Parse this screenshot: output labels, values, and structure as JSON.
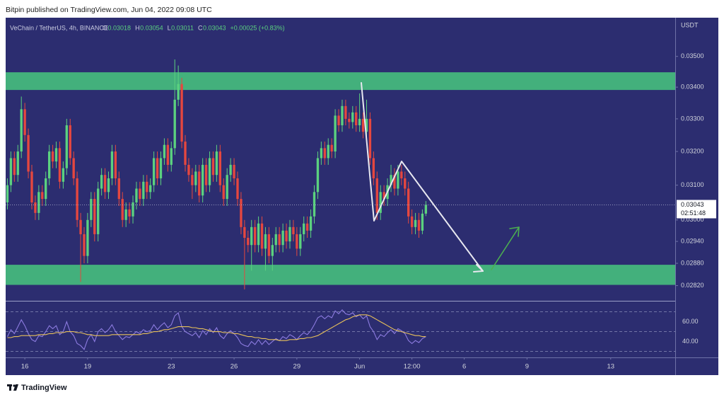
{
  "published": "Bitpin published on TradingView.com, Jun 04, 2022 09:08 UTC",
  "brand": "TradingView",
  "chart_data": [
    {
      "type": "candlestick",
      "symbol": "VeChain / TetherUS, 4h, BINANCE",
      "ohlc_labels": [
        "O",
        "H",
        "L",
        "C"
      ],
      "change": "+0.00025 (+0.83%)",
      "axis_unit": "USDT",
      "countdown": "02:51:48",
      "background": "#2c2d70",
      "up_color": "#5bd17f",
      "down_color": "#e5473f",
      "zone_color": "#43b07c",
      "zones": [
        {
          "from": 0.03391,
          "to": 0.03448
        },
        {
          "from": 0.02822,
          "to": 0.02876
        }
      ],
      "log": true,
      "ylim": [
        0.0278,
        0.0363
      ],
      "yticks": [
        {
          "value": 0.035,
          "label": "0.03500"
        },
        {
          "value": 0.034,
          "label": "0.03400"
        },
        {
          "value": 0.033,
          "label": "0.03300"
        },
        {
          "value": 0.032,
          "label": "0.03200"
        },
        {
          "value": 0.031,
          "label": "0.03100"
        },
        {
          "value": 0.03,
          "label": "0.03000"
        },
        {
          "value": 0.0294,
          "label": "0.02940"
        },
        {
          "value": 0.0288,
          "label": "0.02880"
        },
        {
          "value": 0.0282,
          "label": "0.02820"
        }
      ],
      "xlim": [
        -0.5,
        191.5
      ],
      "xticks": [
        {
          "value": 5,
          "label": "16"
        },
        {
          "value": 23,
          "label": "19"
        },
        {
          "value": 47,
          "label": "23"
        },
        {
          "value": 65,
          "label": "26"
        },
        {
          "value": 83,
          "label": "29"
        },
        {
          "value": 101,
          "label": "Jun"
        },
        {
          "value": 116,
          "label": "12:00"
        },
        {
          "value": 131,
          "label": "6"
        },
        {
          "value": 149,
          "label": "9"
        },
        {
          "value": 173,
          "label": "13"
        }
      ],
      "open": [
        0.0305,
        0.031,
        0.0318,
        0.0313,
        0.032,
        0.0333,
        0.0325,
        0.0314,
        0.0305,
        0.0302,
        0.0308,
        0.0306,
        0.0312,
        0.032,
        0.0317,
        0.0321,
        0.0311,
        0.0315,
        0.0328,
        0.0318,
        0.0312,
        0.03,
        0.0296,
        0.029,
        0.03,
        0.0306,
        0.0296,
        0.0309,
        0.0313,
        0.0308,
        0.0312,
        0.032,
        0.0312,
        0.0306,
        0.03,
        0.0303,
        0.0301,
        0.0305,
        0.0309,
        0.0306,
        0.0311,
        0.0308,
        0.031,
        0.0318,
        0.0312,
        0.0318,
        0.0322,
        0.0316,
        0.0321,
        0.0336,
        0.0341,
        0.0323,
        0.0316,
        0.0313,
        0.031,
        0.0314,
        0.0307,
        0.0316,
        0.031,
        0.0318,
        0.0313,
        0.032,
        0.031,
        0.0306,
        0.0313,
        0.0316,
        0.0312,
        0.0306,
        0.0298,
        0.0295,
        0.0293,
        0.0298,
        0.0293,
        0.0299,
        0.0292,
        0.0296,
        0.029,
        0.0293,
        0.0296,
        0.0293,
        0.0297,
        0.0294,
        0.0298,
        0.0296,
        0.0292,
        0.0296,
        0.0299,
        0.0297,
        0.0301,
        0.0308,
        0.0318,
        0.0321,
        0.0318,
        0.0322,
        0.032,
        0.0331,
        0.0328,
        0.0334,
        0.033,
        0.0329,
        0.0332,
        0.0328,
        0.033,
        0.0326,
        0.033,
        0.0318,
        0.0312,
        0.0302,
        0.0308,
        0.0306,
        0.031,
        0.0313,
        0.0309,
        0.0314,
        0.0312,
        0.0309,
        0.0301,
        0.0298,
        0.03,
        0.0297,
        0.03018
      ],
      "high": [
        0.0312,
        0.032,
        0.032,
        0.0322,
        0.0337,
        0.0335,
        0.0327,
        0.0316,
        0.0307,
        0.031,
        0.031,
        0.0314,
        0.0322,
        0.0322,
        0.0323,
        0.0323,
        0.0317,
        0.033,
        0.033,
        0.032,
        0.0314,
        0.0302,
        0.0298,
        0.0302,
        0.0308,
        0.0308,
        0.0311,
        0.0315,
        0.0315,
        0.0314,
        0.0322,
        0.0322,
        0.0314,
        0.0308,
        0.0305,
        0.0305,
        0.0307,
        0.0311,
        0.0311,
        0.0313,
        0.0313,
        0.0312,
        0.032,
        0.032,
        0.032,
        0.0324,
        0.0324,
        0.0323,
        0.0349,
        0.0347,
        0.0343,
        0.0325,
        0.0318,
        0.0315,
        0.0316,
        0.0316,
        0.0318,
        0.0318,
        0.032,
        0.032,
        0.0322,
        0.0322,
        0.0312,
        0.0315,
        0.0318,
        0.0318,
        0.0314,
        0.0308,
        0.03,
        0.0297,
        0.03,
        0.03,
        0.0301,
        0.0301,
        0.0298,
        0.0298,
        0.0295,
        0.0298,
        0.0298,
        0.0299,
        0.0299,
        0.03,
        0.03,
        0.0298,
        0.0298,
        0.0301,
        0.0301,
        0.0303,
        0.031,
        0.032,
        0.0323,
        0.0323,
        0.0324,
        0.0324,
        0.0333,
        0.0333,
        0.0336,
        0.0336,
        0.0332,
        0.0334,
        0.0334,
        0.0338,
        0.0332,
        0.0336,
        0.0332,
        0.032,
        0.0314,
        0.031,
        0.031,
        0.0312,
        0.0316,
        0.0315,
        0.0316,
        0.0316,
        0.0314,
        0.0311,
        0.0303,
        0.0302,
        0.0302,
        0.0303,
        0.03054
      ],
      "low": [
        0.0303,
        0.0308,
        0.0311,
        0.0311,
        0.0318,
        0.0323,
        0.0312,
        0.0303,
        0.03,
        0.03,
        0.0304,
        0.0304,
        0.031,
        0.0315,
        0.0315,
        0.0309,
        0.0309,
        0.0313,
        0.0316,
        0.031,
        0.0298,
        0.0283,
        0.0288,
        0.0288,
        0.0298,
        0.0294,
        0.0294,
        0.0307,
        0.0306,
        0.0306,
        0.031,
        0.031,
        0.0304,
        0.0298,
        0.0298,
        0.0299,
        0.0299,
        0.0303,
        0.0304,
        0.0304,
        0.0306,
        0.0306,
        0.0308,
        0.031,
        0.031,
        0.0316,
        0.0314,
        0.0314,
        0.0319,
        0.0334,
        0.0321,
        0.0314,
        0.0311,
        0.0306,
        0.0308,
        0.0305,
        0.0305,
        0.0308,
        0.0308,
        0.0311,
        0.0311,
        0.0308,
        0.0304,
        0.0304,
        0.0311,
        0.031,
        0.0304,
        0.0296,
        0.0281,
        0.0291,
        0.0286,
        0.0291,
        0.0291,
        0.029,
        0.0286,
        0.0288,
        0.0286,
        0.0291,
        0.0291,
        0.0291,
        0.0292,
        0.0292,
        0.0294,
        0.029,
        0.029,
        0.0294,
        0.0295,
        0.0295,
        0.0299,
        0.0306,
        0.0316,
        0.0316,
        0.0316,
        0.0318,
        0.0318,
        0.0326,
        0.0326,
        0.0328,
        0.0327,
        0.0327,
        0.0326,
        0.0326,
        0.0324,
        0.0324,
        0.0316,
        0.031,
        0.03,
        0.03,
        0.0304,
        0.0304,
        0.0308,
        0.0307,
        0.0307,
        0.031,
        0.0307,
        0.0299,
        0.0296,
        0.0296,
        0.0295,
        0.0296,
        0.03011
      ],
      "close": [
        0.031,
        0.0318,
        0.0313,
        0.032,
        0.0333,
        0.0325,
        0.0314,
        0.0305,
        0.0302,
        0.0308,
        0.0306,
        0.0312,
        0.032,
        0.0317,
        0.0321,
        0.0311,
        0.0315,
        0.0328,
        0.0318,
        0.0312,
        0.03,
        0.0296,
        0.029,
        0.03,
        0.0306,
        0.0296,
        0.0309,
        0.0313,
        0.0308,
        0.0312,
        0.032,
        0.0312,
        0.0306,
        0.03,
        0.0303,
        0.0301,
        0.0305,
        0.0309,
        0.0306,
        0.0311,
        0.0308,
        0.031,
        0.0318,
        0.0312,
        0.0318,
        0.0322,
        0.0316,
        0.0321,
        0.0336,
        0.0341,
        0.0323,
        0.0316,
        0.0313,
        0.031,
        0.0314,
        0.0307,
        0.0316,
        0.031,
        0.0318,
        0.0313,
        0.032,
        0.031,
        0.0306,
        0.0313,
        0.0316,
        0.0312,
        0.0306,
        0.0298,
        0.0295,
        0.0293,
        0.0298,
        0.0293,
        0.0299,
        0.0292,
        0.0296,
        0.029,
        0.0293,
        0.0296,
        0.0293,
        0.0297,
        0.0294,
        0.0298,
        0.0296,
        0.0292,
        0.0296,
        0.0299,
        0.0297,
        0.0301,
        0.0308,
        0.0318,
        0.0321,
        0.0318,
        0.0322,
        0.032,
        0.0331,
        0.0328,
        0.0334,
        0.033,
        0.0329,
        0.0332,
        0.0328,
        0.033,
        0.0326,
        0.033,
        0.0318,
        0.0312,
        0.0302,
        0.0308,
        0.0306,
        0.031,
        0.0313,
        0.0309,
        0.0314,
        0.0312,
        0.0309,
        0.0301,
        0.0298,
        0.03,
        0.0297,
        0.03018,
        0.03043
      ]
    },
    {
      "type": "line",
      "ylim": [
        24,
        79
      ],
      "yticks": [
        {
          "value": 60,
          "label": "60.00"
        },
        {
          "value": 40,
          "label": "40.00"
        }
      ],
      "levels": [
        30,
        50,
        70
      ],
      "series": [
        {
          "color": "#8c7be0",
          "values": [
            45,
            52,
            48,
            55,
            62,
            56,
            48,
            42,
            40,
            46,
            45,
            50,
            56,
            53,
            56,
            47,
            50,
            60,
            50,
            46,
            38,
            36,
            32,
            42,
            47,
            40,
            50,
            53,
            49,
            52,
            57,
            50,
            46,
            42,
            45,
            44,
            47,
            50,
            48,
            52,
            50,
            51,
            57,
            52,
            56,
            59,
            54,
            57,
            66,
            69,
            55,
            50,
            48,
            46,
            49,
            44,
            51,
            47,
            53,
            49,
            54,
            46,
            43,
            48,
            51,
            48,
            44,
            38,
            36,
            35,
            40,
            37,
            42,
            37,
            41,
            37,
            40,
            43,
            41,
            45,
            43,
            47,
            45,
            42,
            46,
            49,
            47,
            51,
            57,
            64,
            66,
            63,
            66,
            64,
            71,
            68,
            72,
            68,
            67,
            69,
            65,
            67,
            63,
            66,
            55,
            50,
            42,
            47,
            45,
            49,
            52,
            48,
            53,
            51,
            48,
            41,
            38,
            41,
            39,
            43,
            45
          ]
        },
        {
          "color": "#e8c15a",
          "values": [
            44,
            44,
            45,
            45,
            46,
            46,
            46,
            46,
            46,
            47,
            47,
            47,
            48,
            48,
            49,
            49,
            49,
            50,
            50,
            50,
            49,
            49,
            48,
            47,
            47,
            46,
            46,
            46,
            46,
            46,
            47,
            47,
            47,
            47,
            47,
            47,
            47,
            47,
            47,
            48,
            48,
            49,
            50,
            50,
            51,
            52,
            52,
            53,
            54,
            55,
            55,
            55,
            55,
            54,
            54,
            53,
            53,
            52,
            51,
            50,
            50,
            50,
            49,
            49,
            49,
            48,
            48,
            47,
            46,
            45,
            45,
            44,
            44,
            43,
            43,
            42,
            42,
            42,
            41,
            41,
            41,
            42,
            42,
            42,
            43,
            43,
            44,
            44,
            45,
            46,
            48,
            50,
            52,
            54,
            56,
            58,
            60,
            62,
            63,
            65,
            66,
            67,
            67,
            67,
            66,
            64,
            62,
            60,
            58,
            56,
            54,
            52,
            51,
            50,
            49,
            48,
            47,
            46,
            46,
            45,
            45
          ]
        }
      ]
    }
  ]
}
